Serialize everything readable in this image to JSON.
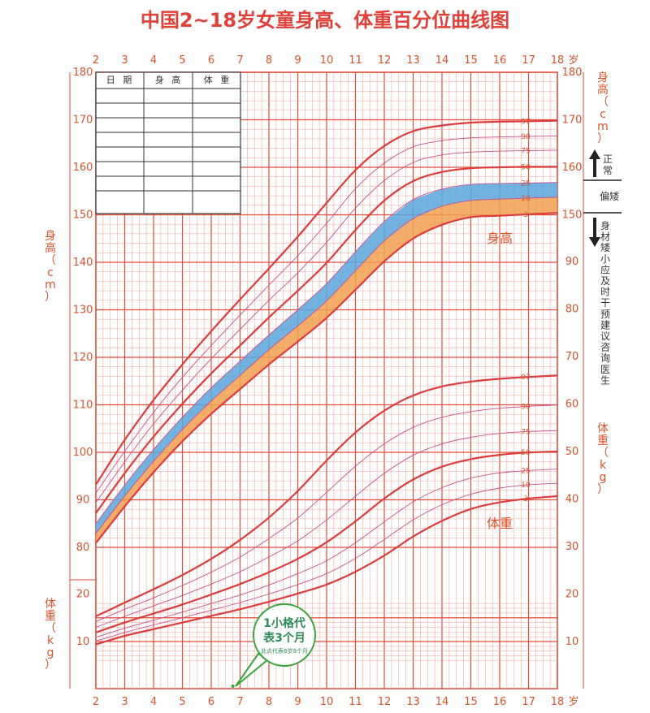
{
  "title": "中国2~18岁女童身高、体重百分位曲线图",
  "colors": {
    "grid_major": "#e34a3a",
    "grid_minor": "#f2a39a",
    "curve_main": "#dc3c3c",
    "curve_thin": "#c8508c",
    "normal_band": "#5aa6dd",
    "short_band": "#f0a050",
    "bubble": "#3aa33a"
  },
  "x_axis": {
    "ticks": [
      "2",
      "3",
      "4",
      "5",
      "6",
      "7",
      "8",
      "9",
      "10",
      "11",
      "12",
      "13",
      "14",
      "15",
      "16",
      "17",
      "18"
    ],
    "unit": "岁"
  },
  "height_axis": {
    "ticks_left": [
      "180",
      "170",
      "160",
      "150",
      "140",
      "130",
      "120",
      "110",
      "100",
      "90",
      "80"
    ],
    "ticks_right": [
      "180",
      "170",
      "160",
      "150"
    ],
    "label_left": "身高（cm）",
    "label_right": "身高（cm）"
  },
  "weight_axis": {
    "ticks_right": [
      "90",
      "80",
      "70",
      "60",
      "50",
      "40",
      "30",
      "20",
      "10"
    ],
    "ticks_left": [
      "20",
      "10"
    ],
    "label_right": "体重（kg）",
    "label_left": "体重（kg）"
  },
  "record_table": {
    "headers": [
      "日 期",
      "身 高",
      "体 重"
    ]
  },
  "side_notes": {
    "normal": "正常",
    "short": "偏矮",
    "advice": "身材矮小应及时干预建议咨询医生"
  },
  "curve_labels": {
    "height": "身高",
    "weight": "体重"
  },
  "bubble": {
    "main": "1小格代表3个月",
    "main_line1": "1小格代",
    "main_line2": "表3个月",
    "sub": "此点代表6岁9个月"
  },
  "chart_data": {
    "type": "line",
    "title": "中国2~18岁女童身高、体重百分位曲线图",
    "xlabel": "岁",
    "ylabel": "身高（cm）",
    "y2label": "体重（kg）",
    "x": [
      2,
      3,
      4,
      5,
      6,
      7,
      8,
      9,
      10,
      11,
      12,
      13,
      14,
      15,
      16,
      17,
      18
    ],
    "xlim": [
      2,
      18
    ],
    "ylim": [
      80,
      180
    ],
    "y2lim": [
      10,
      90
    ],
    "height_series": [
      {
        "name": "3",
        "values": [
          80.9,
          88.6,
          95.8,
          102.3,
          108.1,
          113.3,
          118.5,
          123.3,
          128.3,
          134.2,
          140.2,
          145.0,
          147.9,
          149.5,
          149.8,
          150.1,
          150.4
        ]
      },
      {
        "name": "10",
        "values": [
          82.9,
          90.8,
          98.1,
          104.8,
          110.8,
          116.2,
          121.6,
          126.6,
          131.9,
          138.2,
          144.5,
          149.2,
          151.8,
          153.0,
          153.3,
          153.5,
          153.7
        ]
      },
      {
        "name": "25",
        "values": [
          85.0,
          93.1,
          100.6,
          107.4,
          113.6,
          119.2,
          124.7,
          130.0,
          135.5,
          142.2,
          148.6,
          153.2,
          155.4,
          156.4,
          156.6,
          156.7,
          156.8
        ]
      },
      {
        "name": "50",
        "values": [
          87.2,
          95.6,
          103.3,
          110.2,
          116.6,
          122.5,
          128.4,
          134.0,
          139.9,
          146.8,
          153.0,
          157.1,
          159.0,
          159.8,
          160.0,
          160.1,
          160.1
        ]
      },
      {
        "name": "75",
        "values": [
          89.4,
          98.0,
          106.0,
          113.1,
          119.7,
          125.9,
          132.0,
          137.8,
          144.2,
          151.4,
          157.2,
          161.0,
          162.6,
          163.2,
          163.4,
          163.5,
          163.6
        ]
      },
      {
        "name": "90",
        "values": [
          91.4,
          100.2,
          108.4,
          115.8,
          122.5,
          128.9,
          135.2,
          141.4,
          148.2,
          155.5,
          160.9,
          164.3,
          165.6,
          166.2,
          166.4,
          166.5,
          166.6
        ]
      },
      {
        "name": "97",
        "values": [
          93.2,
          102.6,
          111.0,
          118.5,
          125.5,
          132.2,
          138.7,
          145.4,
          152.5,
          159.4,
          164.5,
          167.6,
          168.8,
          169.4,
          169.6,
          169.7,
          169.8
        ]
      }
    ],
    "weight_series": [
      {
        "name": "3",
        "values": [
          9.4,
          11.2,
          12.6,
          14.0,
          15.4,
          16.8,
          18.4,
          20.1,
          22.0,
          24.7,
          28.1,
          32.1,
          35.4,
          37.9,
          39.3,
          40.1,
          40.6
        ]
      },
      {
        "name": "10",
        "values": [
          10.1,
          11.9,
          13.5,
          15.0,
          16.6,
          18.2,
          20.0,
          22.0,
          24.3,
          27.5,
          31.5,
          35.6,
          38.8,
          41.0,
          42.3,
          43.0,
          43.3
        ]
      },
      {
        "name": "25",
        "values": [
          10.9,
          12.8,
          14.5,
          16.2,
          18.0,
          19.8,
          21.9,
          24.3,
          27.0,
          30.8,
          35.2,
          39.4,
          42.4,
          44.4,
          45.5,
          46.0,
          46.3
        ]
      },
      {
        "name": "50",
        "values": [
          11.9,
          14.0,
          15.9,
          17.8,
          19.9,
          22.1,
          24.6,
          27.4,
          30.9,
          35.3,
          40.1,
          44.1,
          46.8,
          48.4,
          49.3,
          49.8,
          50.0
        ]
      },
      {
        "name": "75",
        "values": [
          13.0,
          15.3,
          17.5,
          19.7,
          22.1,
          24.7,
          27.8,
          31.2,
          35.6,
          40.6,
          45.4,
          49.2,
          51.6,
          53.0,
          53.8,
          54.2,
          54.4
        ]
      },
      {
        "name": "90",
        "values": [
          14.2,
          16.8,
          19.2,
          21.8,
          24.6,
          27.8,
          31.7,
          36.0,
          41.4,
          46.9,
          51.6,
          55.1,
          57.2,
          58.4,
          59.1,
          59.5,
          59.8
        ]
      },
      {
        "name": "97",
        "values": [
          15.3,
          18.2,
          21.0,
          24.0,
          27.4,
          31.4,
          36.1,
          41.7,
          48.1,
          54.0,
          58.6,
          61.8,
          63.7,
          64.7,
          65.3,
          65.7,
          66.0
        ]
      }
    ],
    "grid": true
  }
}
